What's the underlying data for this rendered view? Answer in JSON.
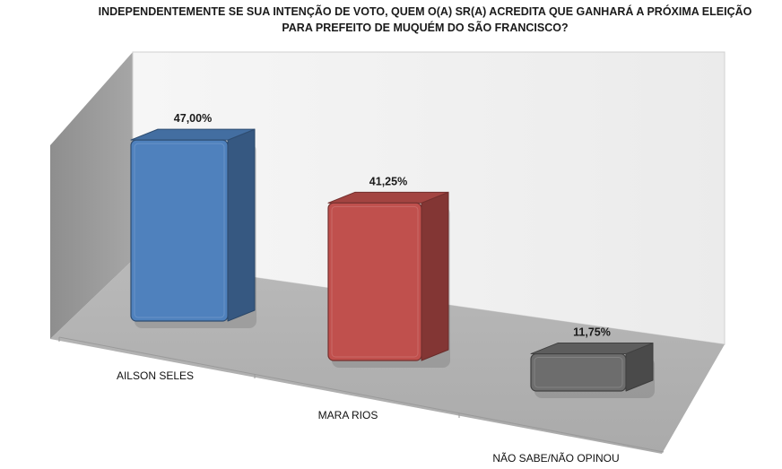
{
  "chart_data": {
    "type": "bar",
    "title_lines": [
      "INDEPENDENTEMENTE SE SUA INTENÇÃO DE VOTO, QUEM O(A) SR(A) ACREDITA QUE GANHARÁ A PRÓXIMA ELEIÇÃO",
      "PARA PREFEITO DE MUQUÉM DO SÃO FRANCISCO?"
    ],
    "categories": [
      "AILSON SELES",
      "MARA RIOS",
      "NÃO SABE/NÃO OPINOU"
    ],
    "values": [
      47.0,
      41.25,
      11.75
    ],
    "value_labels": [
      "47,00%",
      "41,25%",
      "11,75%"
    ],
    "bar_colors": [
      "#4f81bd",
      "#c0504d",
      "#6d6d6d"
    ],
    "ylim": [
      0,
      50
    ],
    "grid": false,
    "legend": "none",
    "style": "3d-perspective"
  }
}
